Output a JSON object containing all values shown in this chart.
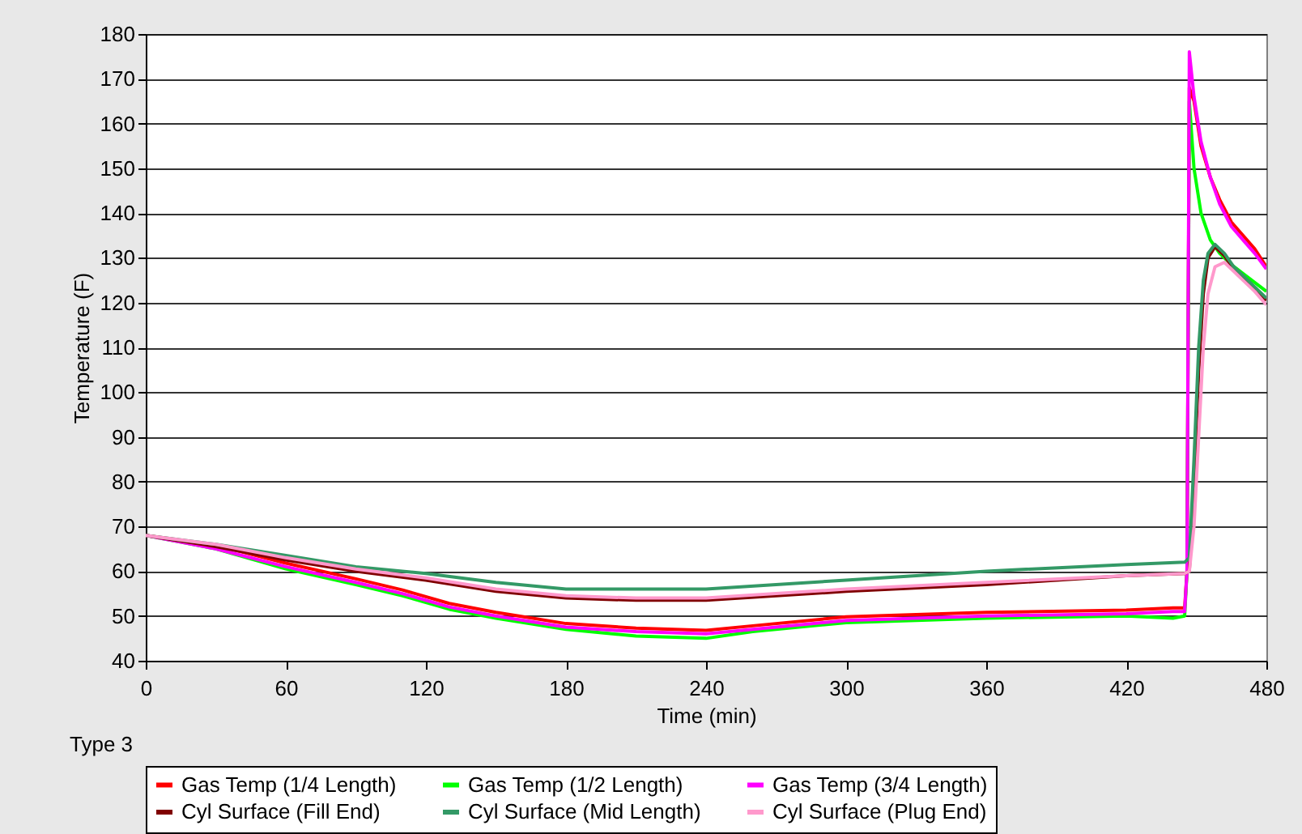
{
  "chart_data": {
    "type": "line",
    "xlabel": "Time (min)",
    "ylabel": "Temperature (F)",
    "xlim": [
      0,
      480
    ],
    "xticks": [
      0,
      60,
      120,
      180,
      240,
      300,
      360,
      420,
      480
    ],
    "ylim": [
      40,
      180
    ],
    "yticks": [
      40,
      50,
      60,
      70,
      80,
      90,
      100,
      110,
      120,
      130,
      140,
      150,
      160,
      170,
      180
    ],
    "grid": "y",
    "legend": "bottom",
    "annotations": [
      "Type 3"
    ],
    "series": [
      {
        "name": "Gas Temp (1/4 Length)",
        "color": "#ff0000",
        "x": [
          0,
          30,
          60,
          90,
          110,
          130,
          150,
          180,
          210,
          240,
          260,
          300,
          360,
          420,
          440,
          445,
          446,
          447,
          449,
          452,
          456,
          460,
          465,
          470,
          475,
          480
        ],
        "values": [
          68,
          65.8,
          61.8,
          58.3,
          55.8,
          52.8,
          50.8,
          48.3,
          47.3,
          46.8,
          47.8,
          49.8,
          50.8,
          51.3,
          51.8,
          51.8,
          60,
          168,
          165,
          155,
          148,
          143,
          138,
          135,
          132,
          128
        ]
      },
      {
        "name": "Gas Temp (1/2 Length)",
        "color": "#00ff00",
        "x": [
          0,
          30,
          60,
          90,
          110,
          130,
          150,
          180,
          210,
          240,
          260,
          300,
          360,
          420,
          440,
          445,
          446,
          447,
          449,
          452,
          456,
          460,
          465,
          470,
          475,
          480
        ],
        "values": [
          68,
          65,
          60.5,
          57,
          54.5,
          51.5,
          49.5,
          47,
          45.5,
          45,
          46.5,
          48.5,
          49.5,
          50,
          49.5,
          50,
          60,
          165,
          150,
          140,
          134,
          131,
          128.5,
          126.5,
          124.5,
          122.5
        ]
      },
      {
        "name": "Gas Temp (3/4 Length)",
        "color": "#ff00ff",
        "x": [
          0,
          30,
          60,
          90,
          110,
          130,
          150,
          180,
          210,
          240,
          260,
          300,
          360,
          420,
          440,
          445,
          446,
          447,
          449,
          452,
          456,
          460,
          465,
          470,
          475,
          480
        ],
        "values": [
          68,
          65,
          61,
          57.5,
          55,
          52,
          50,
          47.5,
          46.5,
          46,
          47,
          49,
          50,
          50.5,
          51,
          51,
          60,
          176,
          166,
          156,
          148,
          142,
          137,
          134,
          131,
          127.5
        ]
      },
      {
        "name": "Cyl Surface (Fill End)",
        "color": "#800000",
        "x": [
          0,
          30,
          60,
          90,
          120,
          150,
          180,
          210,
          240,
          270,
          300,
          360,
          420,
          445,
          447,
          449,
          451,
          453,
          455,
          458,
          462,
          466,
          470,
          475,
          480
        ],
        "values": [
          68,
          65.5,
          62.5,
          60,
          58,
          55.5,
          54,
          53.5,
          53.5,
          54.5,
          55.5,
          57,
          59,
          59.5,
          60,
          80,
          105,
          122,
          130,
          132.5,
          130.5,
          127.5,
          125.5,
          123,
          120.5
        ]
      },
      {
        "name": "Cyl Surface (Mid Length)",
        "color": "#339966",
        "x": [
          0,
          30,
          60,
          90,
          120,
          150,
          180,
          210,
          240,
          270,
          300,
          360,
          420,
          445,
          447,
          449,
          451,
          453,
          455,
          458,
          462,
          466,
          470,
          475,
          480
        ],
        "values": [
          68,
          66,
          63.5,
          61,
          59.5,
          57.5,
          56,
          56,
          56,
          57,
          58,
          60,
          61.5,
          62,
          63,
          85,
          110,
          125,
          131,
          133,
          131,
          128,
          126,
          123.5,
          121
        ]
      },
      {
        "name": "Cyl Surface (Plug End)",
        "color": "#ff99cc",
        "x": [
          0,
          30,
          60,
          90,
          120,
          150,
          180,
          210,
          240,
          270,
          300,
          360,
          420,
          445,
          447,
          449,
          451,
          453,
          455,
          458,
          462,
          466,
          470,
          475,
          480
        ],
        "values": [
          68,
          66,
          63,
          60.5,
          58.5,
          56,
          54.5,
          54,
          54,
          55,
          56,
          57.5,
          59,
          59.5,
          60,
          70,
          90,
          110,
          122,
          128,
          129,
          127,
          125,
          122.5,
          119.5
        ]
      }
    ]
  }
}
